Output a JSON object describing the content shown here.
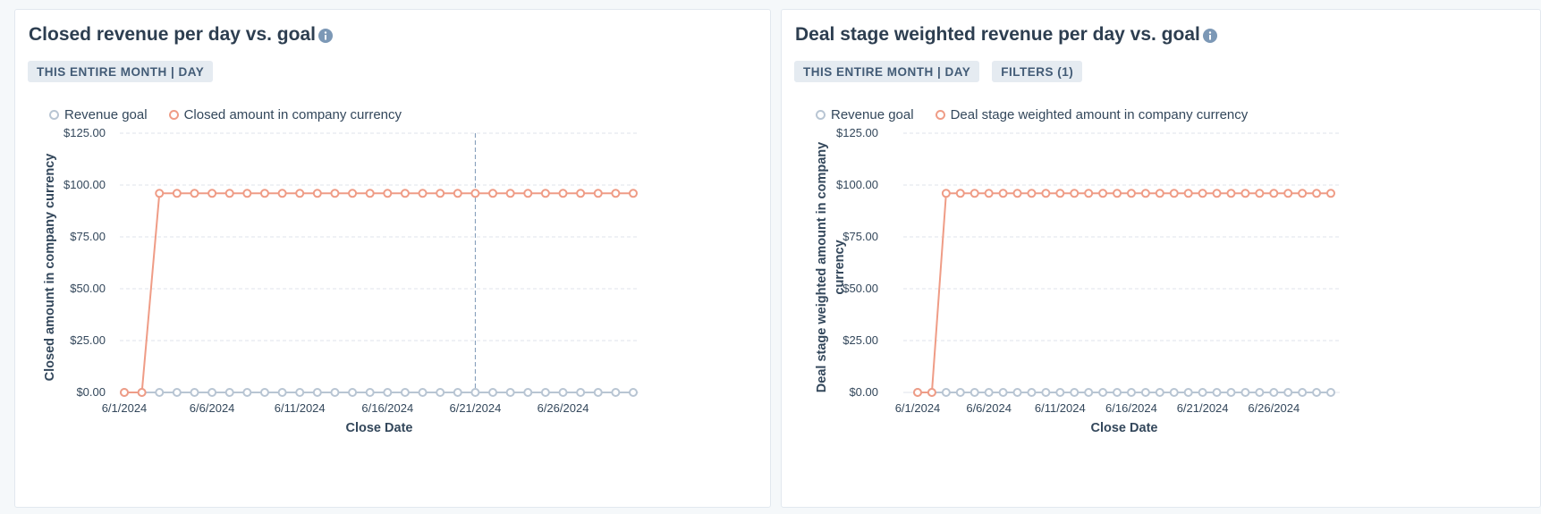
{
  "colors": {
    "goal": "#b8c5d3",
    "actual": "#ef9c86",
    "grid": "#dfe3eb",
    "crosshair": "#7c98b6"
  },
  "cards": [
    {
      "title": "Closed revenue per day vs. goal",
      "info_icon": "info-circle-icon",
      "tags": [
        "THIS ENTIRE MONTH | DAY"
      ],
      "legend": [
        "Revenue goal",
        "Closed amount in company currency"
      ]
    },
    {
      "title": "Deal stage weighted revenue per day vs. goal",
      "info_icon": "info-circle-icon",
      "tags": [
        "THIS ENTIRE MONTH | DAY",
        "FILTERS (1)"
      ],
      "legend": [
        "Revenue goal",
        "Deal stage weighted amount in company currency"
      ]
    }
  ],
  "chart_data": [
    {
      "type": "line",
      "title": "Closed revenue per day vs. goal",
      "xlabel": "Close Date",
      "ylabel": "Closed amount in company currency",
      "ylim": [
        0,
        125
      ],
      "yticks": [
        "$0.00",
        "$25.00",
        "$50.00",
        "$75.00",
        "$100.00",
        "$125.00"
      ],
      "x_tick_labels": [
        "6/1/2024",
        "6/6/2024",
        "6/11/2024",
        "6/16/2024",
        "6/21/2024",
        "6/26/2024"
      ],
      "x_count": 30,
      "hover_index": 20,
      "series": [
        {
          "name": "Revenue goal",
          "values": [
            0,
            0,
            0,
            0,
            0,
            0,
            0,
            0,
            0,
            0,
            0,
            0,
            0,
            0,
            0,
            0,
            0,
            0,
            0,
            0,
            0,
            0,
            0,
            0,
            0,
            0,
            0,
            0,
            0,
            0
          ]
        },
        {
          "name": "Closed amount in company currency",
          "values": [
            0,
            0,
            96,
            96,
            96,
            96,
            96,
            96,
            96,
            96,
            96,
            96,
            96,
            96,
            96,
            96,
            96,
            96,
            96,
            96,
            96,
            96,
            96,
            96,
            96,
            96,
            96,
            96,
            96,
            96
          ]
        }
      ]
    },
    {
      "type": "line",
      "title": "Deal stage weighted revenue per day vs. goal",
      "xlabel": "Close Date",
      "ylabel": [
        "Deal stage weighted amount in company",
        "currency"
      ],
      "ylim": [
        0,
        125
      ],
      "yticks": [
        "$0.00",
        "$25.00",
        "$50.00",
        "$75.00",
        "$100.00",
        "$125.00"
      ],
      "x_tick_labels": [
        "6/1/2024",
        "6/6/2024",
        "6/11/2024",
        "6/16/2024",
        "6/21/2024",
        "6/26/2024"
      ],
      "x_count": 30,
      "series": [
        {
          "name": "Revenue goal",
          "values": [
            0,
            0,
            0,
            0,
            0,
            0,
            0,
            0,
            0,
            0,
            0,
            0,
            0,
            0,
            0,
            0,
            0,
            0,
            0,
            0,
            0,
            0,
            0,
            0,
            0,
            0,
            0,
            0,
            0,
            0
          ]
        },
        {
          "name": "Deal stage weighted amount in company currency",
          "values": [
            0,
            0,
            96,
            96,
            96,
            96,
            96,
            96,
            96,
            96,
            96,
            96,
            96,
            96,
            96,
            96,
            96,
            96,
            96,
            96,
            96,
            96,
            96,
            96,
            96,
            96,
            96,
            96,
            96,
            96
          ]
        }
      ]
    }
  ]
}
